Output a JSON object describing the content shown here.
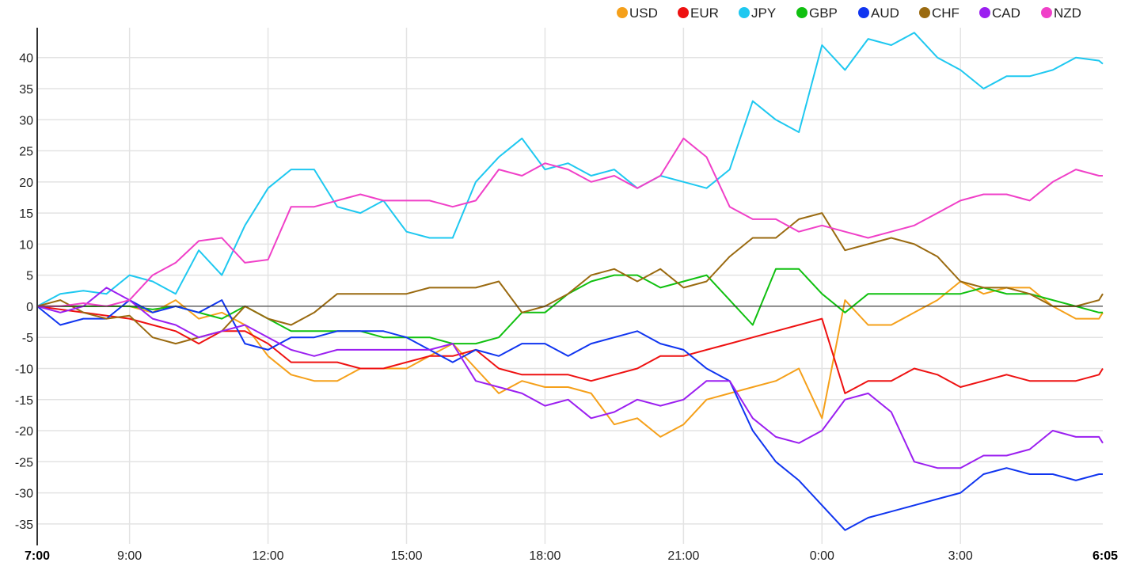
{
  "chart_data": {
    "type": "line",
    "title": "",
    "xlabel": "",
    "ylabel": "",
    "x_unit": "hours since 7:00",
    "ylim": [
      -38.2,
      44.8
    ],
    "xlim": [
      0,
      23.083
    ],
    "grid": true,
    "legend_position": "top-right",
    "y_ticks": [
      -35,
      -30,
      -25,
      -20,
      -15,
      -10,
      -5,
      0,
      5,
      10,
      15,
      20,
      25,
      30,
      35,
      40
    ],
    "x_ticks": [
      {
        "value": 0,
        "label": "7:00",
        "bold": true
      },
      {
        "value": 2,
        "label": "9:00"
      },
      {
        "value": 5,
        "label": "12:00"
      },
      {
        "value": 8,
        "label": "15:00"
      },
      {
        "value": 11,
        "label": "18:00"
      },
      {
        "value": 14,
        "label": "21:00"
      },
      {
        "value": 17,
        "label": "0:00"
      },
      {
        "value": 20,
        "label": "3:00"
      },
      {
        "value": 23.083,
        "label": "6:05",
        "bold": true
      }
    ],
    "x": [
      0,
      0.5,
      1,
      1.5,
      2,
      2.5,
      3,
      3.5,
      4,
      4.5,
      5,
      5.5,
      6,
      6.5,
      7,
      7.5,
      8,
      8.5,
      9,
      9.5,
      10,
      10.5,
      11,
      11.5,
      12,
      12.5,
      13,
      13.5,
      14,
      14.5,
      15,
      15.5,
      16,
      16.5,
      17,
      17.5,
      18,
      18.5,
      19,
      19.5,
      20,
      20.5,
      21,
      21.5,
      22,
      22.5,
      23,
      23.083
    ],
    "series": [
      {
        "name": "USD",
        "color": "#f5a01a",
        "values": [
          0,
          0,
          0,
          0,
          0,
          -1,
          1,
          -2,
          -1,
          -3,
          -8,
          -11,
          -12,
          -12,
          -10,
          -10,
          -10,
          -8,
          -6,
          -10,
          -14,
          -12,
          -13,
          -13,
          -14,
          -19,
          -18,
          -21,
          -19,
          -15,
          -14,
          -13,
          -12,
          -10,
          -18,
          1,
          -3,
          -3,
          -1,
          1,
          4,
          2,
          3,
          3,
          0,
          -2,
          -2,
          -1
        ]
      },
      {
        "name": "EUR",
        "color": "#ee1111",
        "values": [
          0,
          -0.5,
          -1,
          -1.5,
          -2,
          -3,
          -4,
          -6,
          -4,
          -4,
          -6,
          -9,
          -9,
          -9,
          -10,
          -10,
          -9,
          -8,
          -8,
          -7,
          -10,
          -11,
          -11,
          -11,
          -12,
          -11,
          -10,
          -8,
          -8,
          -7,
          -6,
          -5,
          -4,
          -3,
          -2,
          -14,
          -12,
          -12,
          -10,
          -11,
          -13,
          -12,
          -11,
          -12,
          -12,
          -12,
          -11,
          -10
        ]
      },
      {
        "name": "JPY",
        "color": "#1ec8f0",
        "values": [
          0,
          2,
          2.5,
          2,
          5,
          4,
          2,
          9,
          5,
          13,
          19,
          22,
          22,
          16,
          15,
          17,
          12,
          11,
          11,
          20,
          24,
          27,
          22,
          23,
          21,
          22,
          19,
          21,
          20,
          19,
          22,
          33,
          30,
          28,
          42,
          38,
          43,
          42,
          44,
          40,
          38,
          35,
          37,
          37,
          38,
          40,
          39.5,
          39
        ]
      },
      {
        "name": "GBP",
        "color": "#10c010",
        "values": [
          0,
          0,
          0,
          0,
          0,
          -0.5,
          0,
          -1,
          -2,
          0,
          -2,
          -4,
          -4,
          -4,
          -4,
          -5,
          -5,
          -5,
          -6,
          -6,
          -5,
          -1,
          -1,
          2,
          4,
          5,
          5,
          3,
          4,
          5,
          1,
          -3,
          6,
          6,
          2,
          -1,
          2,
          2,
          2,
          2,
          2,
          3,
          2,
          2,
          1,
          0,
          -1,
          -1
        ]
      },
      {
        "name": "AUD",
        "color": "#1035f0",
        "values": [
          0,
          -3,
          -2,
          -2,
          1,
          -1,
          0,
          -1,
          1,
          -6,
          -7,
          -5,
          -5,
          -4,
          -4,
          -4,
          -5,
          -7,
          -9,
          -7,
          -8,
          -6,
          -6,
          -8,
          -6,
          -5,
          -4,
          -6,
          -7,
          -10,
          -12,
          -20,
          -25,
          -28,
          -32,
          -36,
          -34,
          -33,
          -32,
          -31,
          -30,
          -27,
          -26,
          -27,
          -27,
          -28,
          -27,
          -27
        ]
      },
      {
        "name": "CHF",
        "color": "#9a6a10",
        "values": [
          0,
          1,
          -1,
          -2,
          -1.5,
          -5,
          -6,
          -5,
          -4,
          0,
          -2,
          -3,
          -1,
          2,
          2,
          2,
          2,
          3,
          3,
          3,
          4,
          -1,
          0,
          2,
          5,
          6,
          4,
          6,
          3,
          4,
          8,
          11,
          11,
          14,
          15,
          9,
          10,
          11,
          10,
          8,
          4,
          3,
          3,
          2,
          0,
          0,
          1,
          2
        ]
      },
      {
        "name": "CAD",
        "color": "#9b1ff0",
        "values": [
          0,
          -1,
          0,
          3,
          1,
          -2,
          -3,
          -5,
          -4,
          -3,
          -5,
          -7,
          -8,
          -7,
          -7,
          -7,
          -7,
          -7,
          -6,
          -12,
          -13,
          -14,
          -16,
          -15,
          -18,
          -17,
          -15,
          -16,
          -15,
          -12,
          -12,
          -18,
          -21,
          -22,
          -20,
          -15,
          -14,
          -17,
          -25,
          -26,
          -26,
          -24,
          -24,
          -23,
          -20,
          -21,
          -21,
          -22
        ]
      },
      {
        "name": "NZD",
        "color": "#f040c8",
        "values": [
          0,
          0,
          0.5,
          0,
          1,
          5,
          7,
          10.5,
          11,
          7,
          7.5,
          16,
          16,
          17,
          18,
          17,
          17,
          17,
          16,
          17,
          22,
          21,
          23,
          22,
          20,
          21,
          19,
          21,
          27,
          24,
          16,
          14,
          14,
          12,
          13,
          12,
          11,
          12,
          13,
          15,
          17,
          18,
          18,
          17,
          20,
          22,
          21,
          21
        ]
      }
    ]
  }
}
